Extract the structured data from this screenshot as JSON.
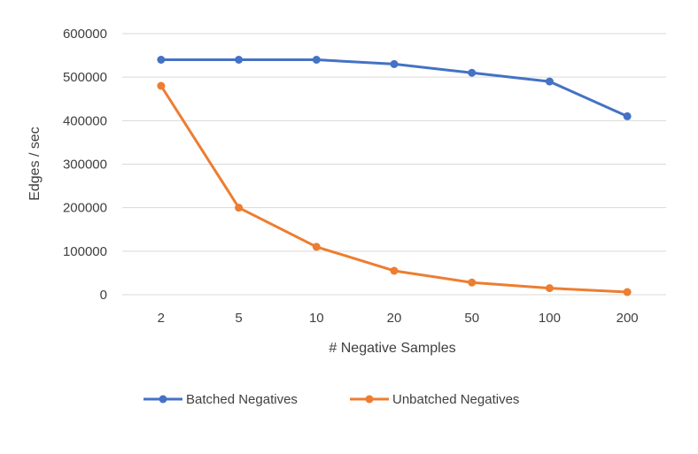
{
  "chart_data": {
    "type": "line",
    "title": "",
    "xlabel": "# Negative Samples",
    "ylabel": "Edges / sec",
    "categories": [
      "2",
      "5",
      "10",
      "20",
      "50",
      "100",
      "200"
    ],
    "y_ticks": [
      "0",
      "100000",
      "200000",
      "300000",
      "400000",
      "500000",
      "600000"
    ],
    "ylim": [
      0,
      600000
    ],
    "grid": true,
    "legend_position": "bottom",
    "series": [
      {
        "name": "Batched Negatives",
        "color": "#4472C4",
        "values": [
          540000,
          540000,
          540000,
          530000,
          510000,
          490000,
          410000
        ]
      },
      {
        "name": "Unbatched Negatives",
        "color": "#ED7D31",
        "values": [
          480000,
          200000,
          110000,
          55000,
          28000,
          15000,
          6000
        ]
      }
    ]
  }
}
